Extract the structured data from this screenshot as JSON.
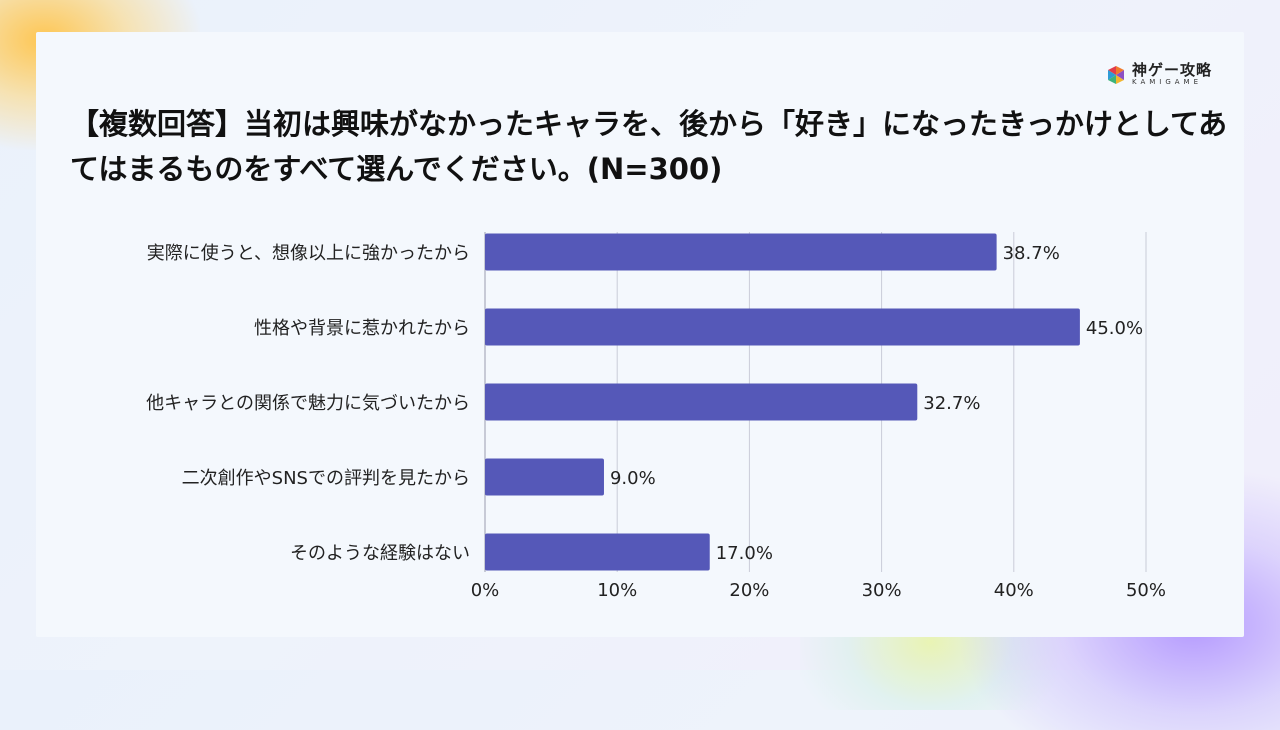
{
  "brand": {
    "name": "神ゲー攻略",
    "sub": "KAMIGAME"
  },
  "chart_data": {
    "type": "bar",
    "orientation": "horizontal",
    "title": "【複数回答】当初は興味がなかったキャラを、後から「好き」になったきっかけとしてあてはまるものをすべて選んでください。(N=300)",
    "categories": [
      "実際に使うと、想像以上に強かったから",
      "性格や背景に惹かれたから",
      "他キャラとの関係で魅力に気づいたから",
      "二次創作やSNSでの評判を見たから",
      "そのような経験はない"
    ],
    "values": [
      38.7,
      45.0,
      32.7,
      9.0,
      17.0
    ],
    "value_labels": [
      "38.7%",
      "45.0%",
      "32.7%",
      "9.0%",
      "17.0%"
    ],
    "xlim": [
      0,
      50
    ],
    "xticks": [
      0,
      10,
      20,
      30,
      40,
      50
    ],
    "xtick_labels": [
      "0%",
      "10%",
      "20%",
      "30%",
      "40%",
      "50%"
    ],
    "grid": "vertical",
    "bar_color": "#5558b8",
    "grid_color": "#c9ccd8"
  }
}
